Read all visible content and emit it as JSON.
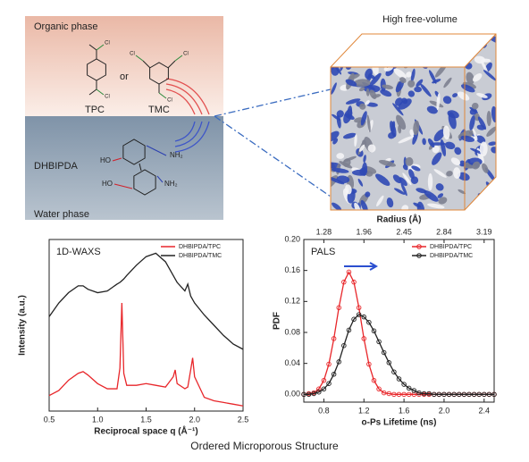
{
  "diagram": {
    "organic_phase": "Organic phase",
    "cl": "Cl",
    "tpc": "TPC",
    "or": "or",
    "tmc": "TMC",
    "dhbipda": "DHBIPDA",
    "ho": "HO",
    "nh2": "NH₂",
    "water_phase": "Water phase",
    "high_free_volume": "High free-volume",
    "footer": "Ordered Microporous Structure"
  },
  "chart_data": [
    {
      "type": "line",
      "annotation": "1D-WAXS",
      "xlabel": "Reciprocal space q (Å⁻¹)",
      "ylabel": "Intensity (a.u.)",
      "x": [
        0.5,
        0.6,
        0.7,
        0.8,
        0.85,
        0.9,
        1.0,
        1.1,
        1.2,
        1.23,
        1.25,
        1.27,
        1.3,
        1.4,
        1.5,
        1.6,
        1.7,
        1.78,
        1.8,
        1.82,
        1.9,
        1.93,
        1.96,
        1.98,
        2.0,
        2.1,
        2.2,
        2.3,
        2.4,
        2.5
      ],
      "series": [
        {
          "name": "DHBIPDA/TPC",
          "color": "#e8262a",
          "values": [
            0.9,
            1.2,
            1.8,
            2.2,
            2.3,
            2.1,
            1.6,
            1.3,
            1.3,
            2.5,
            6.3,
            2.2,
            1.5,
            1.5,
            1.6,
            1.5,
            1.4,
            2.0,
            2.4,
            1.6,
            1.3,
            1.4,
            2.4,
            3.1,
            2.0,
            0.8,
            0.6,
            0.5,
            0.4,
            0.3
          ]
        },
        {
          "name": "DHBIPDA/TMC",
          "color": "#222222",
          "values": [
            5.5,
            6.3,
            6.9,
            7.3,
            7.3,
            7.1,
            6.9,
            7.0,
            7.4,
            7.5,
            7.6,
            7.7,
            7.9,
            8.5,
            9.0,
            9.2,
            8.7,
            7.9,
            7.7,
            7.5,
            7.0,
            7.4,
            6.7,
            6.5,
            6.3,
            5.6,
            5.0,
            4.4,
            3.9,
            3.6
          ]
        }
      ],
      "xlim": [
        0.5,
        2.5
      ],
      "ylim": [
        0,
        10
      ],
      "xticks": [
        0.5,
        {
          "value": 1,
          "label": "1.0"
        },
        1.5,
        {
          "value": 2,
          "label": "2.0"
        },
        2.5
      ],
      "legend": "upper right",
      "markers": false
    },
    {
      "type": "line",
      "annotation": "PALS",
      "xlabel": "o-Ps Lifetime (ns)",
      "ylabel": "PDF",
      "x2label": "Radius (Å)",
      "x": [
        0.6,
        0.65,
        0.7,
        0.75,
        0.8,
        0.85,
        0.9,
        0.95,
        1.0,
        1.05,
        1.1,
        1.15,
        1.2,
        1.25,
        1.3,
        1.35,
        1.4,
        1.45,
        1.5,
        1.55,
        1.6,
        1.65,
        1.7,
        1.75,
        1.8,
        1.85,
        1.9,
        1.95,
        2.0,
        2.05,
        2.1,
        2.15,
        2.2,
        2.25,
        2.3,
        2.35,
        2.4,
        2.45,
        2.5
      ],
      "series": [
        {
          "name": "DHBIPDA/TPC",
          "color": "#e8262a",
          "values": [
            0,
            0.001,
            0.002,
            0.007,
            0.018,
            0.039,
            0.072,
            0.112,
            0.145,
            0.158,
            0.145,
            0.112,
            0.072,
            0.039,
            0.018,
            0.007,
            0.002,
            0.001,
            0,
            0,
            0,
            0,
            0,
            0,
            0,
            0,
            0,
            0,
            0,
            0,
            0,
            0,
            0,
            0,
            0,
            0,
            0,
            0,
            0
          ]
        },
        {
          "name": "DHBIPDA/TMC",
          "color": "#222222",
          "values": [
            0,
            0,
            0.001,
            0.003,
            0.007,
            0.014,
            0.026,
            0.042,
            0.063,
            0.083,
            0.097,
            0.103,
            0.1,
            0.093,
            0.082,
            0.068,
            0.054,
            0.041,
            0.029,
            0.02,
            0.013,
            0.008,
            0.005,
            0.002,
            0.001,
            0.001,
            0,
            0,
            0,
            0,
            0,
            0,
            0,
            0,
            0,
            0,
            0,
            0,
            0
          ]
        }
      ],
      "xlim": [
        0.6,
        2.5
      ],
      "ylim": [
        -0.01,
        0.2
      ],
      "xticks": [
        {
          "value": 0.8,
          "label": "0.8"
        },
        1.2,
        1.6,
        {
          "value": 2,
          "label": "2.0"
        },
        2.4
      ],
      "yticks": [
        {
          "value": 0,
          "label": "0.00"
        },
        0.04,
        0.08,
        0.12,
        0.16,
        {
          "value": 0.2,
          "label": "0.20"
        }
      ],
      "x2ticks": [
        1.28,
        1.96,
        2.45,
        2.84,
        3.19
      ],
      "legend": "upper right",
      "markers": true
    }
  ]
}
